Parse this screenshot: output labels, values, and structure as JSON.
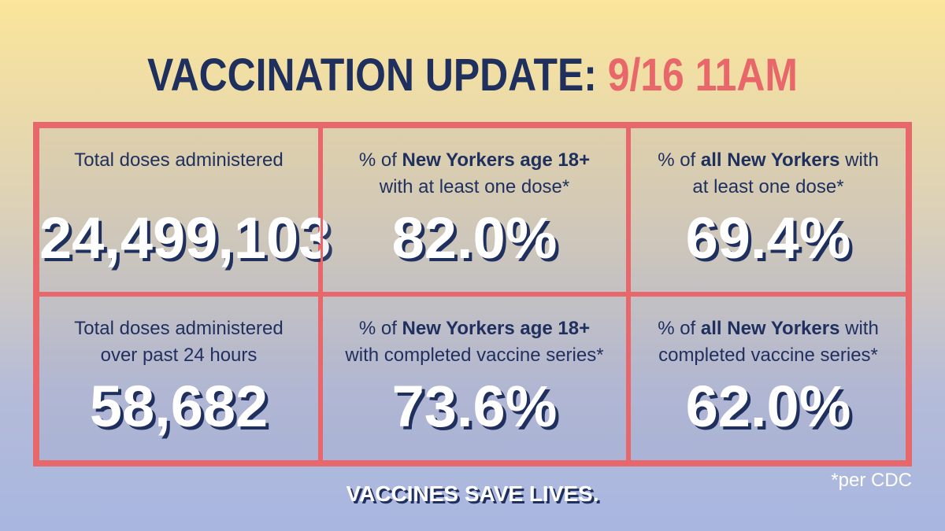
{
  "header": {
    "title": "VACCINATION UPDATE:",
    "date": "9/16 11AM"
  },
  "cells": [
    {
      "label": [
        [
          {
            "text": "Total doses administered"
          }
        ]
      ],
      "value": "24,499,103"
    },
    {
      "label": [
        [
          {
            "text": "% of "
          },
          {
            "text": "New Yorkers age 18+",
            "bold": true
          }
        ],
        [
          {
            "text": "with at least one dose*"
          }
        ]
      ],
      "value": "82.0%"
    },
    {
      "label": [
        [
          {
            "text": "% of "
          },
          {
            "text": "all New Yorkers",
            "bold": true
          },
          {
            "text": " with"
          }
        ],
        [
          {
            "text": "at least one dose*"
          }
        ]
      ],
      "value": "69.4%"
    },
    {
      "label": [
        [
          {
            "text": "Total doses administered"
          }
        ],
        [
          {
            "text": "over past 24 hours"
          }
        ]
      ],
      "value": "58,682"
    },
    {
      "label": [
        [
          {
            "text": "% of "
          },
          {
            "text": "New Yorkers age 18+",
            "bold": true
          }
        ],
        [
          {
            "text": "with completed vaccine series*"
          }
        ]
      ],
      "value": "73.6%"
    },
    {
      "label": [
        [
          {
            "text": "% of "
          },
          {
            "text": "all New Yorkers",
            "bold": true
          },
          {
            "text": " with"
          }
        ],
        [
          {
            "text": "completed vaccine series*"
          }
        ]
      ],
      "value": "62.0%"
    }
  ],
  "footer": {
    "slogan": "VACCINES SAVE LIVES.",
    "note": "*per CDC"
  }
}
